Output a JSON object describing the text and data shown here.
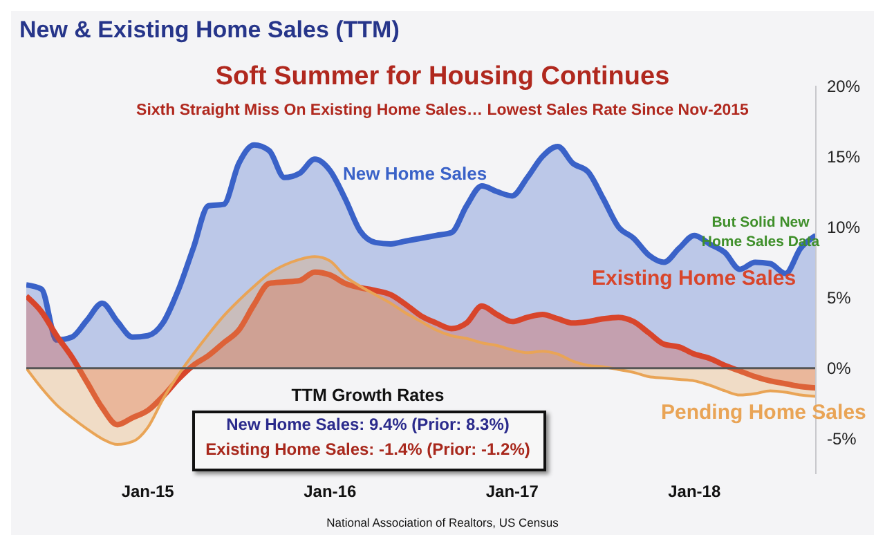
{
  "chart_data": {
    "type": "area",
    "title": "New & Existing Home Sales (TTM)",
    "subtitle": "Soft Summer for Housing Continues",
    "annotations": [
      "Sixth Straight Miss On Existing Home Sales… Lowest Sales Rate Since Nov-2015",
      "But Solid New Home Sales Data",
      "TTM Growth Rates",
      "New Home Sales: 9.4% (Prior: 8.3%)",
      "Existing Home Sales: -1.4% (Prior: -1.2%)",
      "National Association of Realtors, US Census"
    ],
    "x": [
      "2014-05",
      "2014-06",
      "2014-07",
      "2014-08",
      "2014-09",
      "2014-10",
      "2014-11",
      "2014-12",
      "2015-01",
      "2015-02",
      "2015-03",
      "2015-04",
      "2015-05",
      "2015-06",
      "2015-07",
      "2015-08",
      "2015-09",
      "2015-10",
      "2015-11",
      "2015-12",
      "2016-01",
      "2016-02",
      "2016-03",
      "2016-04",
      "2016-05",
      "2016-06",
      "2016-07",
      "2016-08",
      "2016-09",
      "2016-10",
      "2016-11",
      "2016-12",
      "2017-01",
      "2017-02",
      "2017-03",
      "2017-04",
      "2017-05",
      "2017-06",
      "2017-07",
      "2017-08",
      "2017-09",
      "2017-10",
      "2017-11",
      "2017-12",
      "2018-01",
      "2018-02",
      "2018-03",
      "2018-04",
      "2018-05",
      "2018-06",
      "2018-07",
      "2018-08",
      "2018-09"
    ],
    "series": [
      {
        "name": "New Home Sales",
        "color": "#3a62c8",
        "values": [
          5.9,
          5.6,
          2.0,
          2.2,
          3.4,
          4.6,
          3.3,
          2.2,
          2.3,
          3.2,
          5.5,
          8.5,
          11.5,
          11.6,
          14.5,
          15.8,
          15.4,
          13.5,
          13.8,
          14.8,
          14.0,
          12.0,
          9.7,
          8.9,
          8.8,
          9.0,
          9.2,
          9.4,
          9.6,
          11.5,
          12.9,
          12.5,
          12.2,
          13.5,
          15.0,
          15.7,
          14.5,
          13.9,
          12.0,
          10.0,
          9.2,
          8.0,
          7.5,
          8.5,
          9.4,
          8.8,
          8.2,
          7.0,
          7.5,
          7.4,
          6.7,
          8.5,
          9.4
        ]
      },
      {
        "name": "Existing Home Sales",
        "color": "#d8452b",
        "values": [
          5.1,
          4.0,
          2.3,
          0.8,
          -1.0,
          -2.8,
          -4.0,
          -3.5,
          -3.0,
          -2.0,
          -0.8,
          0.2,
          0.9,
          1.8,
          2.7,
          4.5,
          6.0,
          6.1,
          6.2,
          6.8,
          6.6,
          6.0,
          5.7,
          5.5,
          5.2,
          4.5,
          3.7,
          3.2,
          2.8,
          3.2,
          4.4,
          3.8,
          3.3,
          3.6,
          3.8,
          3.5,
          3.2,
          3.3,
          3.5,
          3.6,
          3.3,
          2.5,
          1.7,
          1.5,
          1.0,
          0.7,
          0.2,
          -0.2,
          -0.6,
          -0.9,
          -1.1,
          -1.3,
          -1.4
        ]
      },
      {
        "name": "Pending Home Sales",
        "color": "#e9a456",
        "values": [
          0,
          -1.4,
          -2.6,
          -3.5,
          -4.3,
          -5.0,
          -5.4,
          -5.2,
          -4.2,
          -2.2,
          -0.5,
          1.0,
          2.4,
          3.7,
          4.8,
          5.8,
          6.7,
          7.3,
          7.7,
          7.9,
          7.6,
          6.5,
          5.8,
          5.2,
          4.6,
          3.9,
          3.3,
          2.7,
          2.3,
          2.1,
          1.8,
          1.6,
          1.3,
          1.1,
          1.2,
          1.0,
          0.5,
          0.2,
          0.1,
          -0.1,
          -0.3,
          -0.6,
          -0.7,
          -0.8,
          -0.9,
          -1.2,
          -1.6,
          -1.9,
          -1.8,
          -1.6,
          -1.7,
          -1.9,
          -2.0
        ]
      }
    ],
    "xlim": [
      "2014-05",
      "2018-09"
    ],
    "xticks": [
      {
        "value": "2015-01",
        "label": "Jan-15"
      },
      {
        "value": "2016-01",
        "label": "Jan-16"
      },
      {
        "value": "2017-01",
        "label": "Jan-17"
      },
      {
        "value": "2018-01",
        "label": "Jan-18"
      }
    ],
    "ylim": [
      -7.5,
      20
    ],
    "yticks": [
      {
        "value": -5,
        "label": "-5%"
      },
      {
        "value": 0,
        "label": "0%"
      },
      {
        "value": 5,
        "label": "5%"
      },
      {
        "value": 10,
        "label": "10%"
      },
      {
        "value": 15,
        "label": "15%"
      },
      {
        "value": 20,
        "label": "20%"
      }
    ],
    "ref_lines": [
      {
        "axis": "y",
        "value": 0,
        "color": "#555555"
      }
    ],
    "grid": false,
    "legend": false,
    "marker": "none",
    "line_style": "solid"
  }
}
